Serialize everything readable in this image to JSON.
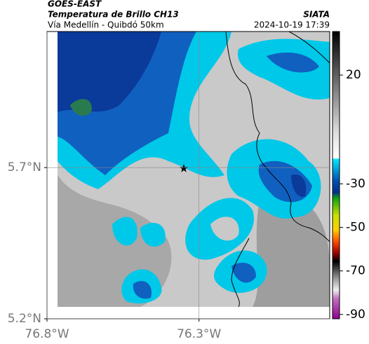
{
  "header": {
    "satellite": "GOES-EAST",
    "product": "Temperatura de Brillo CH13",
    "route": "Vía Medellín - Quibdó 50km",
    "source": "SIATA",
    "datetime": "2024-10-19 17:39"
  },
  "map": {
    "xlim": [
      -76.8,
      -75.87
    ],
    "ylim": [
      5.2,
      6.15
    ],
    "xticks": [
      {
        "value": -76.8,
        "label": "76.8°W"
      },
      {
        "value": -76.3,
        "label": "76.3°W"
      }
    ],
    "yticks": [
      {
        "value": 5.7,
        "label": "5.7°N"
      },
      {
        "value": 5.2,
        "label": "5.2°N"
      }
    ],
    "grid": true
  },
  "colorbar": {
    "lim": [
      -92,
      40
    ],
    "ticks": [
      20,
      -30,
      -50,
      -70,
      -90
    ]
  }
}
